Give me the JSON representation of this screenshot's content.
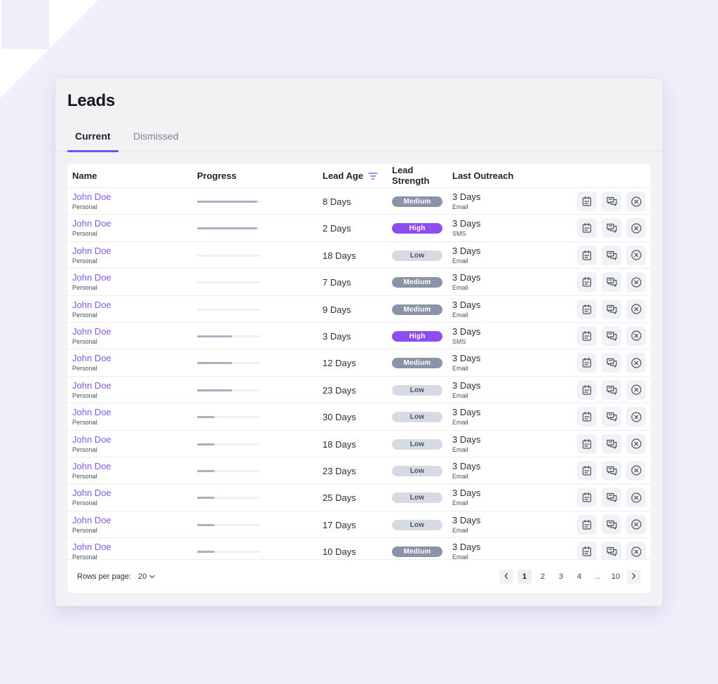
{
  "page": {
    "title": "Leads"
  },
  "tabs": [
    {
      "label": "Current",
      "active": true
    },
    {
      "label": "Dismissed",
      "active": false
    }
  ],
  "table": {
    "columns": {
      "name": "Name",
      "progress": "Progress",
      "lead_age": "Lead Age",
      "lead_strength_line1": "Lead",
      "lead_strength_line2": "Strength",
      "last_outreach": "Last Outreach"
    },
    "rows": [
      {
        "name": "John Doe",
        "type": "Personal",
        "progress": 0.95,
        "age": "8 Days",
        "strength": "Medium",
        "outreach": "3 Days",
        "channel": "Email"
      },
      {
        "name": "John Doe",
        "type": "Personal",
        "progress": 0.95,
        "age": "2 Days",
        "strength": "High",
        "outreach": "3 Days",
        "channel": "SMS"
      },
      {
        "name": "John Doe",
        "type": "Personal",
        "progress": 0,
        "age": "18 Days",
        "strength": "Low",
        "outreach": "3 Days",
        "channel": "Email"
      },
      {
        "name": "John Doe",
        "type": "Personal",
        "progress": 0,
        "age": "7 Days",
        "strength": "Medium",
        "outreach": "3 Days",
        "channel": "Email"
      },
      {
        "name": "John Doe",
        "type": "Personal",
        "progress": 0,
        "age": "9 Days",
        "strength": "Medium",
        "outreach": "3 Days",
        "channel": "Email"
      },
      {
        "name": "John Doe",
        "type": "Personal",
        "progress": 0.55,
        "age": "3 Days",
        "strength": "High",
        "outreach": "3 Days",
        "channel": "SMS"
      },
      {
        "name": "John Doe",
        "type": "Personal",
        "progress": 0.55,
        "age": "12 Days",
        "strength": "Medium",
        "outreach": "3 Days",
        "channel": "Email"
      },
      {
        "name": "John Doe",
        "type": "Personal",
        "progress": 0.55,
        "age": "23 Days",
        "strength": "Low",
        "outreach": "3 Days",
        "channel": "Email"
      },
      {
        "name": "John Doe",
        "type": "Personal",
        "progress": 0.28,
        "age": "30 Days",
        "strength": "Low",
        "outreach": "3 Days",
        "channel": "Email"
      },
      {
        "name": "John Doe",
        "type": "Personal",
        "progress": 0.28,
        "age": "18 Days",
        "strength": "Low",
        "outreach": "3 Days",
        "channel": "Email"
      },
      {
        "name": "John Doe",
        "type": "Personal",
        "progress": 0.28,
        "age": "23 Days",
        "strength": "Low",
        "outreach": "3 Days",
        "channel": "Email"
      },
      {
        "name": "John Doe",
        "type": "Personal",
        "progress": 0.28,
        "age": "25 Days",
        "strength": "Low",
        "outreach": "3 Days",
        "channel": "Email"
      },
      {
        "name": "John Doe",
        "type": "Personal",
        "progress": 0.28,
        "age": "17 Days",
        "strength": "Low",
        "outreach": "3 Days",
        "channel": "Email"
      },
      {
        "name": "John Doe",
        "type": "Personal",
        "progress": 0.28,
        "age": "10 Days",
        "strength": "Medium",
        "outreach": "3 Days",
        "channel": "Email"
      }
    ],
    "row_actions": [
      "notes-icon",
      "chat-icon",
      "dismiss-icon"
    ]
  },
  "footer": {
    "rows_per_page_label": "Rows per page:",
    "rows_per_page_value": "20",
    "pages": [
      "1",
      "2",
      "3",
      "4",
      "...",
      "10"
    ],
    "current_page": "1"
  },
  "colors": {
    "accent": "#7b4cf0",
    "link": "#8558e6",
    "badge_high": "#8e4df0",
    "badge_medium": "#8a93a8",
    "badge_low": "#d6dae3",
    "background": "#efeffb"
  }
}
